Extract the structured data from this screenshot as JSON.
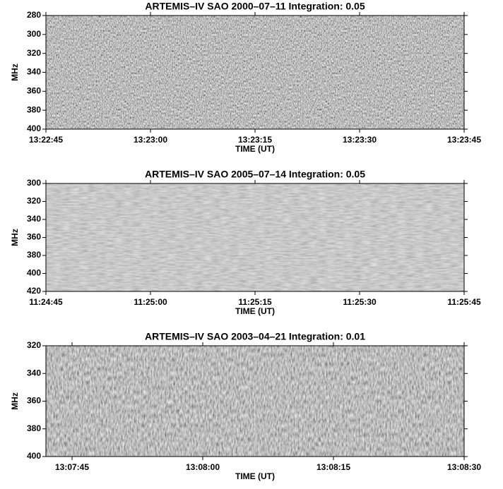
{
  "chart_data": [
    {
      "type": "spectrogram",
      "title": "ARTEMIS–IV  SAO 2000–07–11   Integration: 0.05",
      "xlabel": "TIME (UT)",
      "ylabel": "MHz",
      "xlim": [
        48165,
        48225
      ],
      "xticks": [
        {
          "value": 48165,
          "label": "13:22:45"
        },
        {
          "value": 48180,
          "label": "13:23:00"
        },
        {
          "value": 48195,
          "label": "13:23:15"
        },
        {
          "value": 48210,
          "label": "13:23:30"
        },
        {
          "value": 48225,
          "label": "13:23:45"
        }
      ],
      "ylim": [
        400,
        280
      ],
      "yticks": [
        280,
        300,
        320,
        340,
        360,
        380,
        400
      ]
    },
    {
      "type": "spectrogram",
      "title": "ARTEMIS–IV  SAO 2005–07–14   Integration: 0.05",
      "xlabel": "TIME (UT)",
      "ylabel": "MHz",
      "xlim": [
        41085,
        41145
      ],
      "xticks": [
        {
          "value": 41085,
          "label": "11:24:45"
        },
        {
          "value": 41100,
          "label": "11:25:00"
        },
        {
          "value": 41115,
          "label": "11:25:15"
        },
        {
          "value": 41130,
          "label": "11:25:30"
        },
        {
          "value": 41145,
          "label": "11:25:45"
        }
      ],
      "ylim": [
        420,
        300
      ],
      "yticks": [
        300,
        320,
        340,
        360,
        380,
        400,
        420
      ]
    },
    {
      "type": "spectrogram",
      "title": "ARTEMIS–IV  SAO 2003–04–21   Integration: 0.01",
      "xlabel": "TIME (UT)",
      "ylabel": "MHz",
      "xlim": [
        47262,
        47310
      ],
      "xticks": [
        {
          "value": 47265,
          "label": "13:07:45"
        },
        {
          "value": 47280,
          "label": "13:08:00"
        },
        {
          "value": 47295,
          "label": "13:08:15"
        },
        {
          "value": 47310,
          "label": "13:08:30"
        }
      ],
      "ylim": [
        400,
        320
      ],
      "yticks": [
        320,
        340,
        360,
        380,
        400
      ]
    }
  ]
}
